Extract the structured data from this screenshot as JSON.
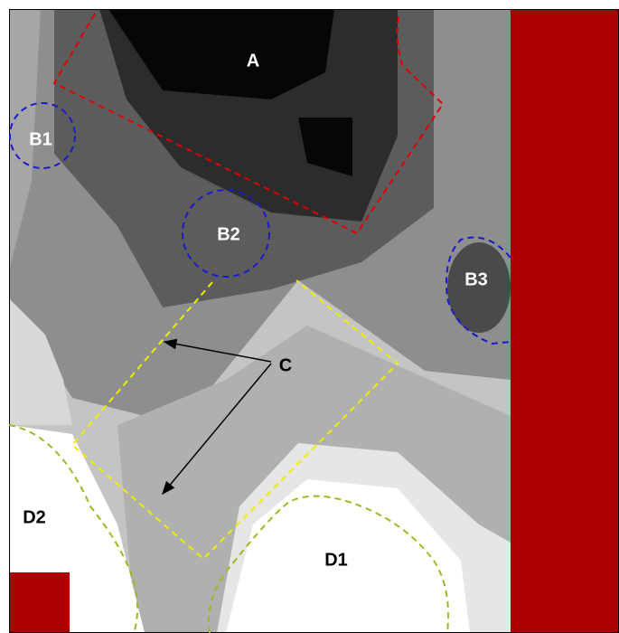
{
  "labels": {
    "a": "A",
    "b1": "B1",
    "b2": "B2",
    "b3": "B3",
    "c": "C",
    "d1": "D1",
    "d2": "D2"
  }
}
